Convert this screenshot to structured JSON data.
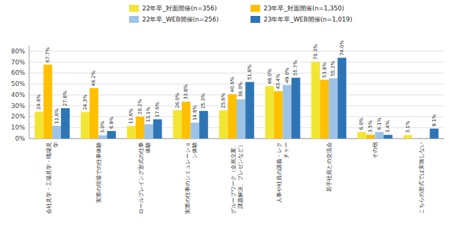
{
  "chart_data": {
    "type": "bar",
    "categories": [
      "会社見学・工場見学・職場見\n学",
      "実際の現場での仕事体験",
      "ロールプレイング形式の仕事\n体験",
      "実際の仕事のシミュレーショ\nン体験",
      "グループワーク（企画立案、\n課題解決、プレゼンなど）",
      "人事や社員の講義・レク\nチャー",
      "若手社員との交流会",
      "その他",
      "こちらの形式では実施しない"
    ],
    "series": [
      {
        "name": "22年卒_対面開催(n=356)",
        "color": "#F2E635",
        "values": [
          24.6,
          24.3,
          11.6,
          26.0,
          25.8,
          48.0,
          70.3,
          6.0,
          3.1
        ],
        "value_labels": [
          "24.6%",
          "24.3%",
          "11.6%",
          "26.0%",
          "25.8%",
          "48.0%",
          "70.3%",
          "6.0%",
          "3.1%"
        ]
      },
      {
        "name": "23年卒_対面開催(n=1,350)",
        "color": "#FFC000",
        "values": [
          67.7,
          46.2,
          20.2,
          33.8,
          40.6,
          43.4,
          53.8,
          3.5,
          null
        ],
        "value_labels": [
          "67.7%",
          "46.2%",
          "20.2%",
          "33.8%",
          "40.6%",
          "43.4%",
          "53.8%",
          "3.5%",
          null
        ]
      },
      {
        "name": "22年卒_WEB開催(n=256)",
        "color": "#9DC3E6",
        "values": [
          11.6,
          3.0,
          13.1,
          14.6,
          36.0,
          49.0,
          55.2,
          6.1,
          null
        ],
        "value_labels": [
          "11.6%",
          "3.0%",
          "13.1%",
          "14.6%",
          "36.0%",
          "49.0%",
          "55.2%",
          "6.1%",
          null
        ]
      },
      {
        "name": "23年年卒_WEB開催(n=1,019)",
        "color": "#2E75B6",
        "values": [
          27.8,
          6.9,
          17.6,
          25.3,
          51.8,
          55.7,
          74.0,
          3.4,
          9.1
        ],
        "value_labels": [
          "27.8%",
          "6.9%",
          "17.6%",
          "25.3%",
          "51.8%",
          "55.7%",
          "74.0%",
          "3.4%",
          "9.1%"
        ]
      }
    ],
    "ylim": [
      0,
      85
    ],
    "yticks": [
      {
        "value": 0,
        "label": "0%"
      },
      {
        "value": 10,
        "label": "10%"
      },
      {
        "value": 20,
        "label": "20%"
      },
      {
        "value": 30,
        "label": "30%"
      },
      {
        "value": 40,
        "label": "40%"
      },
      {
        "value": 50,
        "label": "50%"
      },
      {
        "value": 60,
        "label": "60%"
      },
      {
        "value": 70,
        "label": "70%"
      },
      {
        "value": 80,
        "label": "80%"
      }
    ],
    "grid": true,
    "data_labels": true,
    "legend": "top"
  }
}
